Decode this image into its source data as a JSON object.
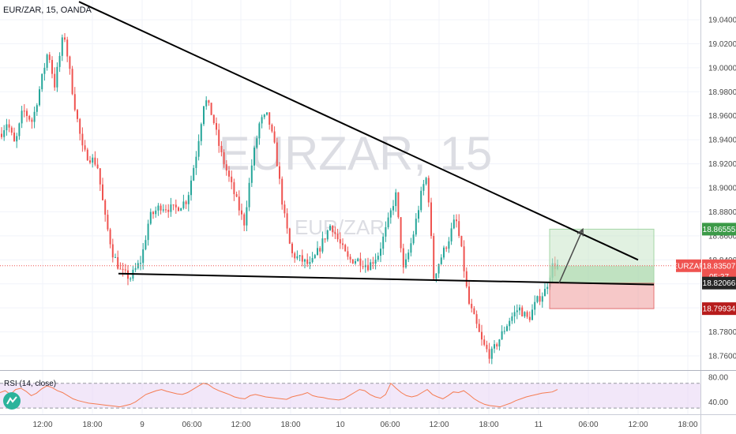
{
  "header": {
    "title": "EUR/ZAR, 15, OANDA"
  },
  "watermark": {
    "big": "EURZAR, 15",
    "small": "EUR/ZAR"
  },
  "chart_data": {
    "type": "candlestick",
    "symbol": "EURZAR",
    "price_axis": {
      "min": 18.74,
      "max": 19.05,
      "ticks": [
        "19.04000",
        "19.02000",
        "19.00000",
        "18.98000",
        "18.96000",
        "18.94000",
        "18.92000",
        "18.90000",
        "18.88000",
        "18.86000",
        "18.84000",
        "18.82000",
        "18.80000",
        "18.78000",
        "18.76000"
      ]
    },
    "time_axis": {
      "ticks": [
        "12:00",
        "18:00",
        "9",
        "06:00",
        "12:00",
        "18:00",
        "10",
        "06:00",
        "12:00",
        "18:00",
        "11",
        "06:00",
        "12:00",
        "18:00"
      ]
    },
    "price_series": [
      {
        "x": 0,
        "y": 18.945
      },
      {
        "x": 8,
        "y": 18.955
      },
      {
        "x": 18,
        "y": 18.935
      },
      {
        "x": 28,
        "y": 18.965
      },
      {
        "x": 40,
        "y": 18.955
      },
      {
        "x": 50,
        "y": 18.985
      },
      {
        "x": 60,
        "y": 19.015
      },
      {
        "x": 68,
        "y": 18.985
      },
      {
        "x": 80,
        "y": 19.03
      },
      {
        "x": 92,
        "y": 18.975
      },
      {
        "x": 104,
        "y": 18.93
      },
      {
        "x": 122,
        "y": 18.92
      },
      {
        "x": 132,
        "y": 18.875
      },
      {
        "x": 142,
        "y": 18.845
      },
      {
        "x": 152,
        "y": 18.83
      },
      {
        "x": 164,
        "y": 18.825
      },
      {
        "x": 178,
        "y": 18.84
      },
      {
        "x": 188,
        "y": 18.875
      },
      {
        "x": 202,
        "y": 18.885
      },
      {
        "x": 220,
        "y": 18.882
      },
      {
        "x": 236,
        "y": 18.89
      },
      {
        "x": 248,
        "y": 18.93
      },
      {
        "x": 258,
        "y": 18.975
      },
      {
        "x": 268,
        "y": 18.96
      },
      {
        "x": 278,
        "y": 18.93
      },
      {
        "x": 288,
        "y": 18.91
      },
      {
        "x": 298,
        "y": 18.89
      },
      {
        "x": 308,
        "y": 18.87
      },
      {
        "x": 318,
        "y": 18.92
      },
      {
        "x": 328,
        "y": 18.955
      },
      {
        "x": 338,
        "y": 18.96
      },
      {
        "x": 348,
        "y": 18.93
      },
      {
        "x": 358,
        "y": 18.88
      },
      {
        "x": 368,
        "y": 18.845
      },
      {
        "x": 380,
        "y": 18.84
      },
      {
        "x": 392,
        "y": 18.835
      },
      {
        "x": 404,
        "y": 18.85
      },
      {
        "x": 418,
        "y": 18.87
      },
      {
        "x": 428,
        "y": 18.855
      },
      {
        "x": 440,
        "y": 18.84
      },
      {
        "x": 452,
        "y": 18.84
      },
      {
        "x": 466,
        "y": 18.835
      },
      {
        "x": 478,
        "y": 18.845
      },
      {
        "x": 490,
        "y": 18.87
      },
      {
        "x": 500,
        "y": 18.895
      },
      {
        "x": 510,
        "y": 18.83
      },
      {
        "x": 522,
        "y": 18.86
      },
      {
        "x": 534,
        "y": 18.9
      },
      {
        "x": 540,
        "y": 18.91
      },
      {
        "x": 548,
        "y": 18.825
      },
      {
        "x": 556,
        "y": 18.84
      },
      {
        "x": 566,
        "y": 18.855
      },
      {
        "x": 576,
        "y": 18.875
      },
      {
        "x": 584,
        "y": 18.845
      },
      {
        "x": 592,
        "y": 18.805
      },
      {
        "x": 600,
        "y": 18.79
      },
      {
        "x": 610,
        "y": 18.77
      },
      {
        "x": 620,
        "y": 18.76
      },
      {
        "x": 632,
        "y": 18.775
      },
      {
        "x": 644,
        "y": 18.79
      },
      {
        "x": 656,
        "y": 18.8
      },
      {
        "x": 668,
        "y": 18.79
      },
      {
        "x": 678,
        "y": 18.805
      },
      {
        "x": 690,
        "y": 18.815
      },
      {
        "x": 698,
        "y": 18.835
      },
      {
        "x": 706,
        "y": 18.835
      }
    ],
    "price_labels": [
      {
        "text": "18.86555",
        "value": 18.86555,
        "color": "#3c9a48",
        "role": "target"
      },
      {
        "text": "EURZAR",
        "value": 18.83507,
        "color": "#ef5350",
        "role": "symbol"
      },
      {
        "text": "18.83507",
        "value": 18.83507,
        "color": "#ef5350",
        "role": "current"
      },
      {
        "text": "05:37",
        "value": 18.8262,
        "color": "#ef5350",
        "role": "countdown"
      },
      {
        "text": "18.82066",
        "value": 18.82066,
        "color": "#262626",
        "role": "entry"
      },
      {
        "text": "18.79934",
        "value": 18.79934,
        "color": "#b71c1c",
        "role": "stop"
      }
    ],
    "drawings": {
      "upper_trendline": [
        {
          "x": 100,
          "y": 19.055
        },
        {
          "x": 808,
          "y": 18.84
        }
      ],
      "lower_trendline": [
        {
          "x": 150,
          "y": 18.8285
        },
        {
          "x": 828,
          "y": 18.8194
        }
      ],
      "projection_arrow": [
        {
          "x": 708,
          "y": 18.82066
        },
        {
          "x": 738,
          "y": 18.86555
        }
      ],
      "long_position": {
        "x_start": 696,
        "x_end": 828,
        "target": 18.86555,
        "entry": 18.82066,
        "stop": 18.79934
      }
    },
    "colors": {
      "up": "#26a69a",
      "down": "#ef5350",
      "trendline": "#000000",
      "rsi_line": "#f57c52",
      "rsi_band": "#e9d7f5"
    },
    "rsi": {
      "label": "RSI (14, close)",
      "range": [
        20,
        90
      ],
      "band": [
        30,
        70
      ],
      "ticks": [
        "80.00",
        "40.00"
      ],
      "values": [
        55,
        58,
        52,
        60,
        62,
        57,
        50,
        54,
        61,
        66,
        63,
        58,
        55,
        50,
        45,
        42,
        40,
        38,
        37,
        36,
        35,
        34,
        33,
        32,
        34,
        36,
        40,
        46,
        52,
        55,
        58,
        60,
        57,
        55,
        53,
        52,
        55,
        60,
        65,
        70,
        68,
        62,
        58,
        55,
        52,
        48,
        46,
        45,
        50,
        52,
        50,
        48,
        47,
        46,
        45,
        44,
        48,
        50,
        52,
        55,
        50,
        48,
        47,
        45,
        44,
        43,
        45,
        50,
        55,
        60,
        58,
        52,
        48,
        46,
        52,
        70,
        62,
        55,
        50,
        48,
        50,
        55,
        60,
        52,
        48,
        45,
        50,
        56,
        55,
        58,
        52,
        45,
        40,
        36,
        34,
        33,
        32,
        35,
        38,
        42,
        45,
        48,
        50,
        52,
        54,
        55,
        56,
        60
      ]
    },
    "watermark": "EURZAR, 15"
  }
}
